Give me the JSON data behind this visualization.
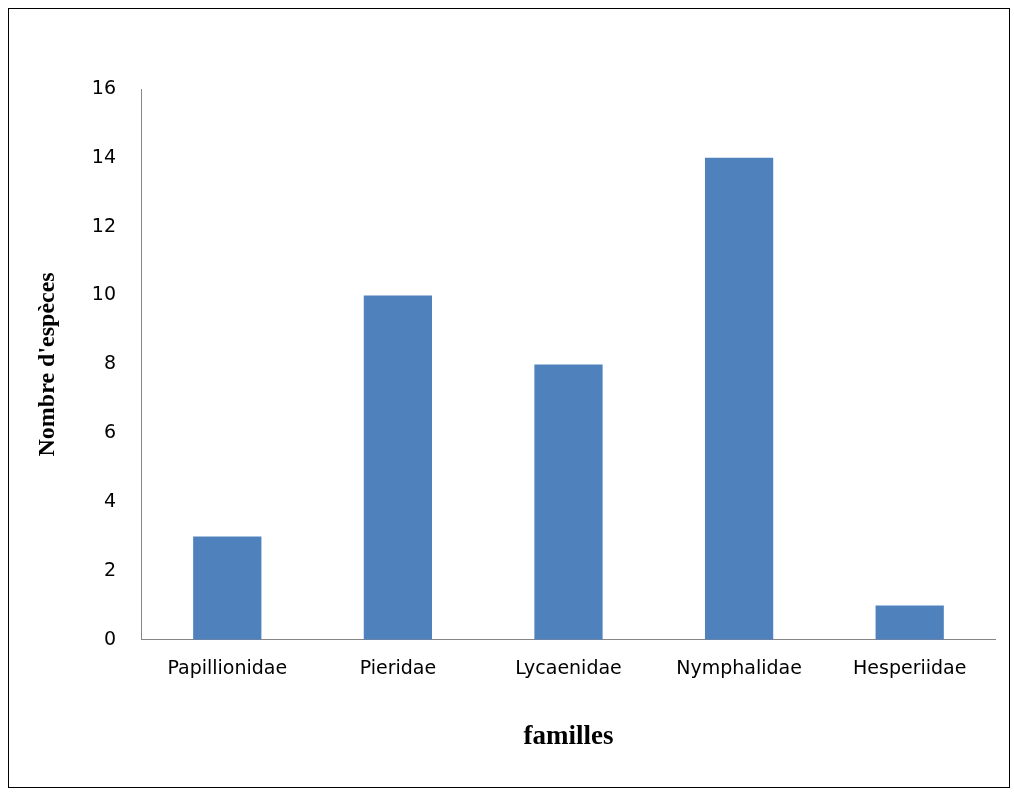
{
  "chart_data": {
    "type": "bar",
    "xlabel": "familles",
    "ylabel": "Nombre d'espèces",
    "categories": [
      "Papillionidae",
      "Pieridae",
      "Lycaenidae",
      "Nymphalidae",
      "Hesperiidae"
    ],
    "values": [
      3,
      10,
      8,
      14,
      1
    ],
    "color": "#4f81bd",
    "ylim": [
      0,
      16
    ],
    "yticks": [
      0,
      2,
      4,
      6,
      8,
      10,
      12,
      14,
      16
    ],
    "grid": false,
    "legend": false
  }
}
